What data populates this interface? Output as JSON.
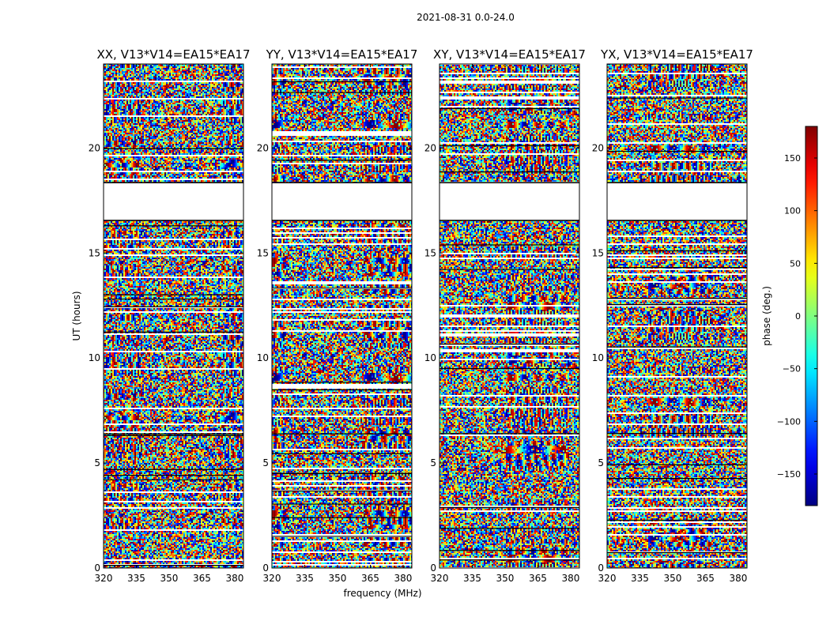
{
  "figure": {
    "suptitle": "2021-08-31 0.0-24.0"
  },
  "chart_data": {
    "type": "heatmap",
    "title": "2021-08-31 0.0-24.0",
    "xlabel": "frequency (MHz)",
    "ylabel": "UT (hours)",
    "xlim": [
      320,
      384
    ],
    "ylim": [
      0,
      24
    ],
    "x_ticks": [
      320,
      335,
      350,
      365,
      380
    ],
    "y_ticks": [
      0,
      5,
      10,
      15,
      20
    ],
    "colormap": "jet",
    "panels": [
      {
        "name": "XX",
        "title": "XX, V13*V14=EA15*EA17"
      },
      {
        "name": "YY",
        "title": "YY, V13*V14=EA15*EA17"
      },
      {
        "name": "XY",
        "title": "XY, V13*V14=EA15*EA17"
      },
      {
        "name": "YX",
        "title": "YX, V13*V14=EA15*EA17"
      }
    ],
    "flagged_gaps_hours": [
      [
        16.55,
        18.35
      ]
    ],
    "colorbar": {
      "label": "phase (deg.)",
      "range": [
        -180,
        180
      ],
      "ticks": [
        -150,
        -100,
        -50,
        0,
        50,
        100,
        150
      ]
    }
  }
}
